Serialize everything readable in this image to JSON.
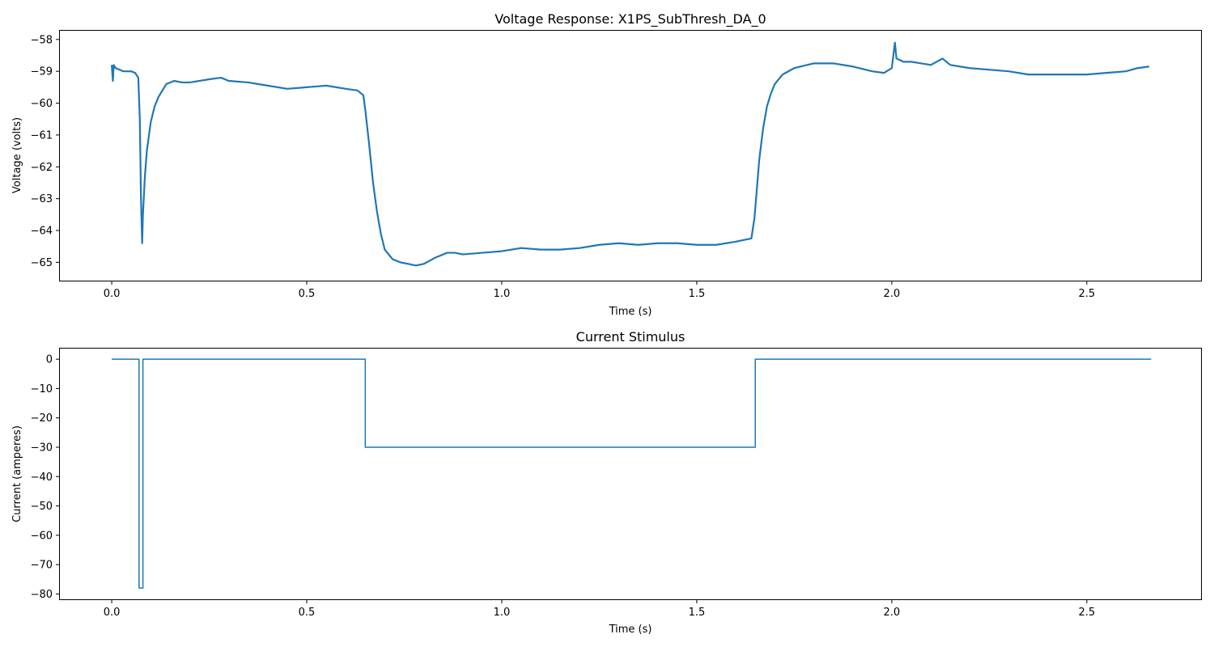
{
  "chart_data": [
    {
      "type": "line",
      "title": "Voltage Response: X1PS_SubThresh_DA_0",
      "xlabel": "Time (s)",
      "ylabel": "Voltage (volts)",
      "xlim": [
        -0.135,
        2.795
      ],
      "ylim": [
        -65.6,
        -57.7
      ],
      "xticks": [
        0.0,
        0.5,
        1.0,
        1.5,
        2.0,
        2.5
      ],
      "xtick_labels": [
        "0.0",
        "0.5",
        "1.0",
        "1.5",
        "2.0",
        "2.5"
      ],
      "yticks": [
        -65,
        -64,
        -63,
        -62,
        -61,
        -60,
        -59,
        -58
      ],
      "ytick_labels": [
        "−65",
        "−64",
        "−63",
        "−62",
        "−61",
        "−60",
        "−59",
        "−58"
      ],
      "grid": false,
      "color": "#1f77b4",
      "series": [
        {
          "x": [
            0.0,
            0.003,
            0.005,
            0.01,
            0.03,
            0.05,
            0.06,
            0.068,
            0.072,
            0.075,
            0.078,
            0.08,
            0.085,
            0.09,
            0.1,
            0.11,
            0.12,
            0.13,
            0.14,
            0.15,
            0.16,
            0.18,
            0.2,
            0.25,
            0.28,
            0.3,
            0.35,
            0.4,
            0.45,
            0.5,
            0.55,
            0.6,
            0.63,
            0.645,
            0.65,
            0.66,
            0.67,
            0.68,
            0.69,
            0.7,
            0.72,
            0.74,
            0.76,
            0.78,
            0.8,
            0.83,
            0.86,
            0.88,
            0.9,
            0.95,
            1.0,
            1.05,
            1.1,
            1.15,
            1.2,
            1.25,
            1.3,
            1.35,
            1.4,
            1.45,
            1.5,
            1.55,
            1.6,
            1.64,
            1.648,
            1.66,
            1.67,
            1.68,
            1.69,
            1.7,
            1.72,
            1.75,
            1.8,
            1.85,
            1.9,
            1.95,
            1.98,
            2.0,
            2.008,
            2.012,
            2.03,
            2.05,
            2.1,
            2.13,
            2.15,
            2.2,
            2.25,
            2.3,
            2.35,
            2.4,
            2.45,
            2.5,
            2.55,
            2.6,
            2.63,
            2.66
          ],
          "y": [
            -58.8,
            -59.3,
            -58.8,
            -58.9,
            -59.0,
            -59.0,
            -59.05,
            -59.2,
            -60.5,
            -63.0,
            -64.4,
            -63.5,
            -62.3,
            -61.5,
            -60.6,
            -60.1,
            -59.8,
            -59.6,
            -59.4,
            -59.35,
            -59.3,
            -59.35,
            -59.35,
            -59.25,
            -59.2,
            -59.3,
            -59.35,
            -59.45,
            -59.55,
            -59.5,
            -59.45,
            -59.55,
            -59.6,
            -59.75,
            -60.2,
            -61.3,
            -62.5,
            -63.4,
            -64.1,
            -64.6,
            -64.9,
            -65.0,
            -65.05,
            -65.1,
            -65.05,
            -64.85,
            -64.7,
            -64.7,
            -64.75,
            -64.7,
            -64.65,
            -64.55,
            -64.6,
            -64.6,
            -64.55,
            -64.45,
            -64.4,
            -64.45,
            -64.4,
            -64.4,
            -64.45,
            -64.45,
            -64.35,
            -64.25,
            -63.6,
            -61.8,
            -60.8,
            -60.1,
            -59.7,
            -59.4,
            -59.1,
            -58.9,
            -58.75,
            -58.75,
            -58.85,
            -59.0,
            -59.05,
            -58.9,
            -58.1,
            -58.6,
            -58.7,
            -58.7,
            -58.8,
            -58.6,
            -58.8,
            -58.9,
            -58.95,
            -59.0,
            -59.1,
            -59.1,
            -59.1,
            -59.1,
            -59.05,
            -59.0,
            -58.9,
            -58.85
          ]
        }
      ]
    },
    {
      "type": "line",
      "title": "Current Stimulus",
      "xlabel": "Time (s)",
      "ylabel": "Current (amperes)",
      "xlim": [
        -0.135,
        2.795
      ],
      "ylim": [
        -82.1,
        3.9
      ],
      "xticks": [
        0.0,
        0.5,
        1.0,
        1.5,
        2.0,
        2.5
      ],
      "xtick_labels": [
        "0.0",
        "0.5",
        "1.0",
        "1.5",
        "2.0",
        "2.5"
      ],
      "yticks": [
        -80,
        -70,
        -60,
        -50,
        -40,
        -30,
        -20,
        -10,
        0
      ],
      "ytick_labels": [
        "−80",
        "−70",
        "−60",
        "−50",
        "−40",
        "−30",
        "−20",
        "−10",
        "0"
      ],
      "grid": false,
      "color": "#1f77b4",
      "series": [
        {
          "x": [
            0.0,
            0.07,
            0.07,
            0.08,
            0.08,
            0.65,
            0.65,
            1.65,
            1.65,
            2.665
          ],
          "y": [
            0,
            0,
            -78,
            -78,
            0,
            0,
            -30,
            -30,
            0,
            0
          ]
        }
      ]
    }
  ]
}
